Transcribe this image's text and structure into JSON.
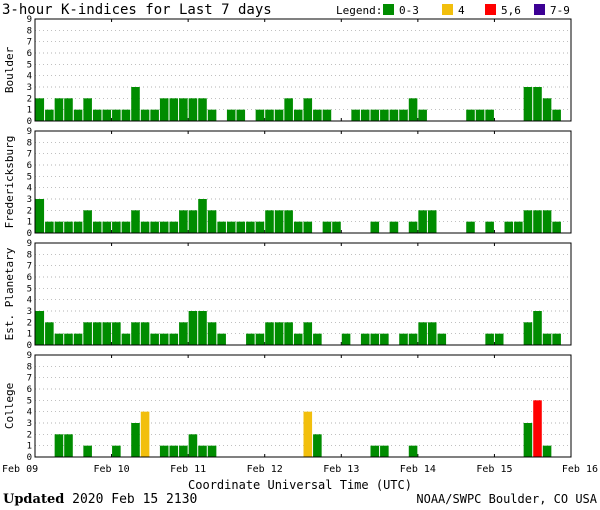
{
  "chart_data": {
    "type": "bar",
    "title": "3-hour K-indices for Last 7 days",
    "legend": {
      "title": "Legend:",
      "placement": "top-right",
      "entries": [
        {
          "label": "0-3",
          "color": "#008c00"
        },
        {
          "label": "4",
          "color": "#f2bf0d"
        },
        {
          "label": "5,6",
          "color": "#ff0000"
        },
        {
          "label": "7-9",
          "color": "#3c0094"
        }
      ]
    },
    "ylim": [
      0,
      9
    ],
    "y_ticks": [
      "0",
      "1",
      "2",
      "3",
      "4",
      "5",
      "6",
      "7",
      "8",
      "9"
    ],
    "x_ticks": [
      "Feb 09",
      "Feb 10",
      "Feb 11",
      "Feb 12",
      "Feb 13",
      "Feb 14",
      "Feb 15",
      "Feb 16"
    ],
    "xlabel": "Coordinate Universal Time (UTC)",
    "x_range": [
      "2020-02-09 00:00",
      "2020-02-16 00:00"
    ],
    "bar_interval_hours": 3,
    "grid": "horizontal dotted",
    "series": [
      {
        "name": "Boulder",
        "values": [
          2,
          1,
          2,
          2,
          1,
          2,
          1,
          1,
          1,
          1,
          3,
          1,
          1,
          2,
          2,
          2,
          2,
          2,
          1,
          0,
          1,
          1,
          0,
          1,
          1,
          1,
          2,
          1,
          2,
          1,
          1,
          0,
          0,
          1,
          1,
          1,
          1,
          1,
          1,
          2,
          1,
          0,
          0,
          0,
          0,
          1,
          1,
          1,
          0,
          0,
          0,
          3,
          3,
          2,
          1,
          0
        ]
      },
      {
        "name": "Fredericksburg",
        "values": [
          3,
          1,
          1,
          1,
          1,
          2,
          1,
          1,
          1,
          1,
          2,
          1,
          1,
          1,
          1,
          2,
          2,
          3,
          2,
          1,
          1,
          1,
          1,
          1,
          2,
          2,
          2,
          1,
          1,
          0,
          1,
          1,
          0,
          0,
          0,
          1,
          0,
          1,
          0,
          1,
          2,
          2,
          0,
          0,
          0,
          1,
          0,
          1,
          0,
          1,
          1,
          2,
          2,
          2,
          1,
          0
        ]
      },
      {
        "name": "Est. Planetary",
        "values": [
          3,
          2,
          1,
          1,
          1,
          2,
          2,
          2,
          2,
          1,
          2,
          2,
          1,
          1,
          1,
          2,
          3,
          3,
          2,
          1,
          0,
          0,
          1,
          1,
          2,
          2,
          2,
          1,
          2,
          1,
          0,
          0,
          1,
          0,
          1,
          1,
          1,
          0,
          1,
          1,
          2,
          2,
          1,
          0,
          0,
          0,
          0,
          1,
          1,
          0,
          0,
          2,
          3,
          1,
          1,
          0
        ]
      },
      {
        "name": "College",
        "values": [
          0,
          0,
          2,
          2,
          0,
          1,
          0,
          0,
          1,
          0,
          3,
          4,
          0,
          1,
          1,
          1,
          2,
          1,
          1,
          0,
          0,
          0,
          0,
          0,
          0,
          0,
          0,
          0,
          4,
          2,
          0,
          0,
          0,
          0,
          0,
          1,
          1,
          0,
          0,
          1,
          0,
          0,
          0,
          0,
          0,
          0,
          0,
          0,
          0,
          0,
          0,
          3,
          5,
          1,
          0,
          0
        ]
      }
    ]
  },
  "footer": {
    "updated_label": "Updated",
    "updated_time": " 2020 Feb 15 2130",
    "credit": "NOAA/SWPC Boulder, CO USA"
  }
}
